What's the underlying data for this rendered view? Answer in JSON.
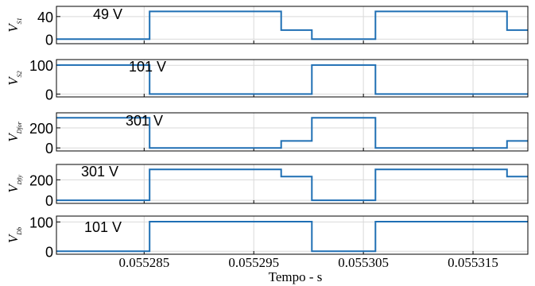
{
  "chart_data": {
    "type": "line",
    "xlabel": "Tempo - s",
    "x_ticks": [
      "0.055285",
      "0.055295",
      "0.055305",
      "0.055315"
    ],
    "xlim": [
      0.055277,
      0.05532
    ],
    "line_color": "#1f6fb4",
    "grid": true,
    "subplots": [
      {
        "ylabel_main": "V",
        "ylabel_sub": "S1",
        "yticks": [
          "0",
          "40"
        ],
        "ylim": [
          -8,
          58
        ],
        "annotation": "49 V",
        "x": [
          0.055277,
          0.0552855,
          0.0552855,
          0.0552975,
          0.0552975,
          0.0553003,
          0.0553003,
          0.0553061,
          0.0553061,
          0.0553181,
          0.0553181,
          0.05532
        ],
        "values": [
          0,
          0,
          49,
          49,
          16,
          16,
          0,
          0,
          49,
          49,
          16,
          16
        ]
      },
      {
        "ylabel_main": "V",
        "ylabel_sub": "S2",
        "yticks": [
          "0",
          "100"
        ],
        "ylim": [
          -10,
          120
        ],
        "annotation": "101 V",
        "x": [
          0.055277,
          0.0552855,
          0.0552855,
          0.0553003,
          0.0553003,
          0.0553061,
          0.0553061,
          0.05532
        ],
        "values": [
          101,
          101,
          0,
          0,
          101,
          101,
          0,
          0
        ]
      },
      {
        "ylabel_main": "V",
        "ylabel_sub": "Dfor",
        "yticks": [
          "0",
          "200"
        ],
        "ylim": [
          -30,
          350
        ],
        "annotation": "301 V",
        "x": [
          0.055277,
          0.0552855,
          0.0552855,
          0.0552975,
          0.0552975,
          0.0553003,
          0.0553003,
          0.0553061,
          0.0553061,
          0.0553181,
          0.0553181,
          0.05532
        ],
        "values": [
          301,
          301,
          0,
          0,
          70,
          70,
          301,
          301,
          0,
          0,
          70,
          70
        ]
      },
      {
        "ylabel_main": "V",
        "ylabel_sub": "Dfly",
        "yticks": [
          "0",
          "200"
        ],
        "ylim": [
          -30,
          350
        ],
        "annotation": "301 V",
        "x": [
          0.055277,
          0.0552855,
          0.0552855,
          0.0552975,
          0.0552975,
          0.0553003,
          0.0553003,
          0.0553061,
          0.0553061,
          0.0553181,
          0.0553181,
          0.05532
        ],
        "values": [
          0,
          0,
          301,
          301,
          232,
          232,
          0,
          0,
          301,
          301,
          232,
          232
        ]
      },
      {
        "ylabel_main": "V",
        "ylabel_sub": "Db",
        "yticks": [
          "0",
          "100"
        ],
        "ylim": [
          -10,
          120
        ],
        "annotation": "101 V",
        "x": [
          0.055277,
          0.0552855,
          0.0552855,
          0.0553003,
          0.0553003,
          0.0553061,
          0.0553061,
          0.05532
        ],
        "values": [
          0,
          0,
          101,
          101,
          0,
          0,
          101,
          101
        ]
      }
    ]
  }
}
